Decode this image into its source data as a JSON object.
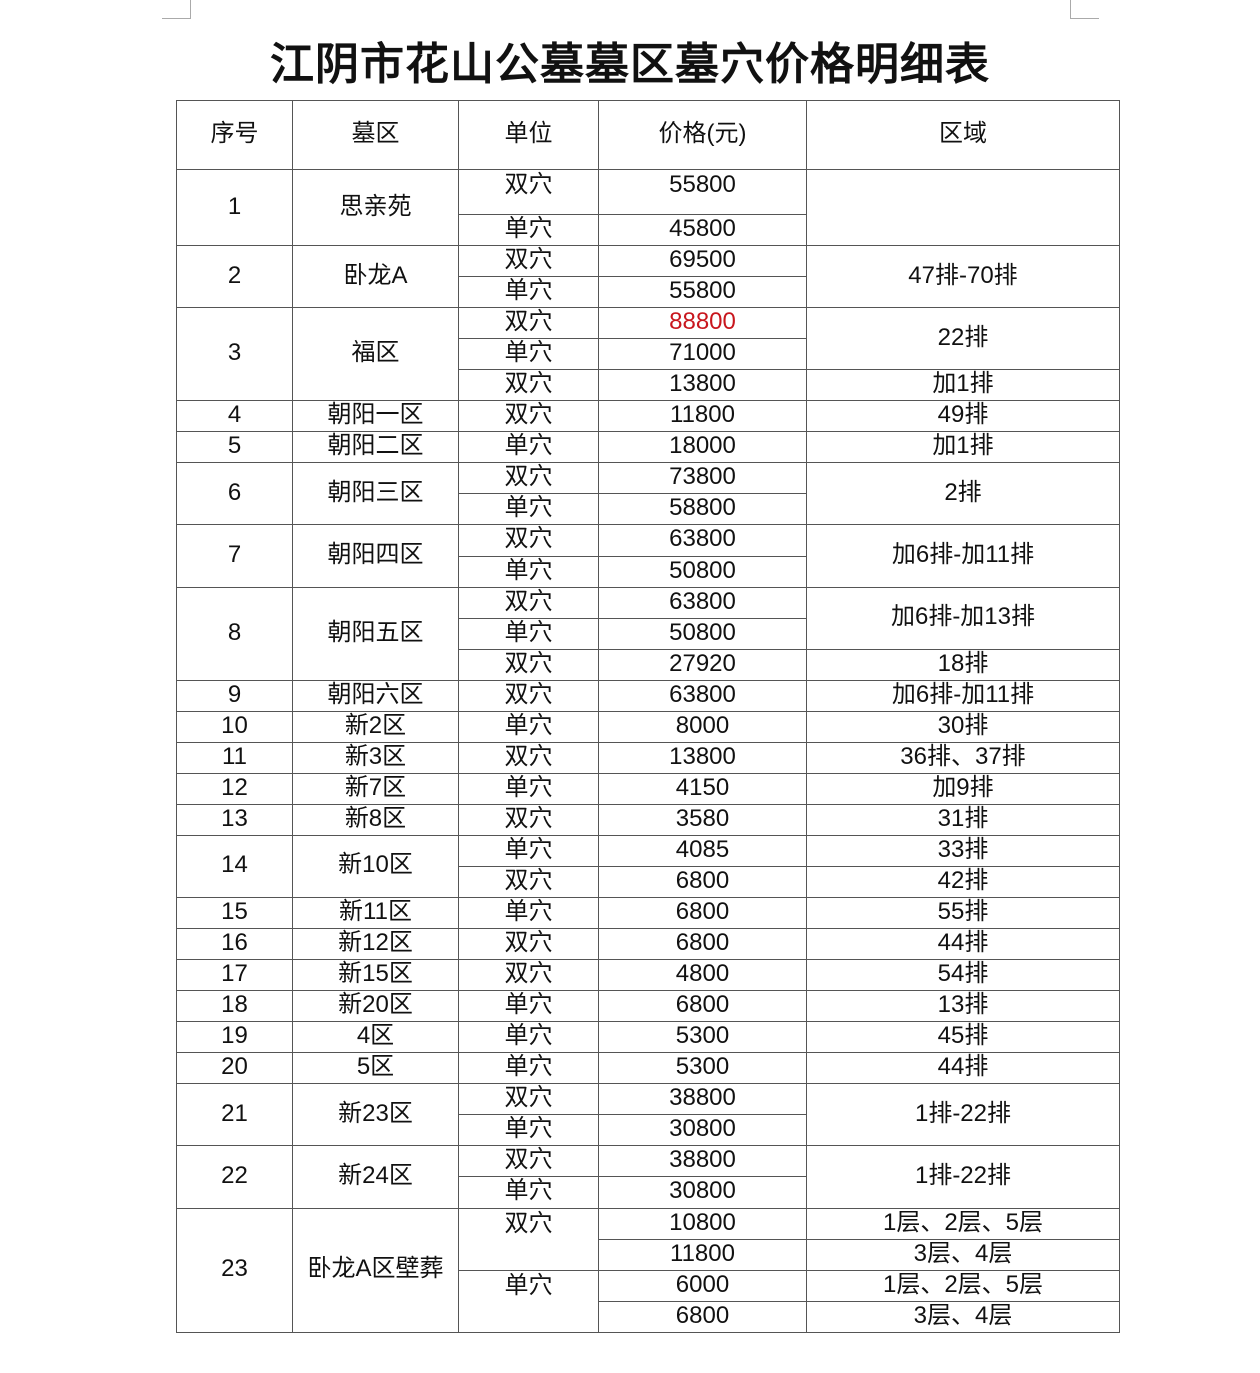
{
  "title": "江阴市花山公墓墓区墓穴价格明细表",
  "colors": {
    "highlight": "#c8161d"
  },
  "headers": [
    "序号",
    "墓区",
    "单位",
    "价格(元)",
    "区域"
  ],
  "rows": [
    {
      "no": "1",
      "zone": "思亲苑",
      "units": [
        {
          "label": "双穴",
          "span": 1
        },
        {
          "label": "单穴",
          "span": 1
        }
      ],
      "prices": [
        "55800",
        "45800"
      ],
      "regions": [
        {
          "label": "",
          "span": 2
        }
      ]
    },
    {
      "no": "2",
      "zone": "卧龙A",
      "units": [
        {
          "label": "双穴",
          "span": 1
        },
        {
          "label": "单穴",
          "span": 1
        }
      ],
      "prices": [
        "69500",
        "55800"
      ],
      "regions": [
        {
          "label": "47排-70排",
          "span": 2
        }
      ]
    },
    {
      "no": "3",
      "zone": "福区",
      "units": [
        {
          "label": "双穴",
          "span": 1
        },
        {
          "label": "单穴",
          "span": 1
        },
        {
          "label": "双穴",
          "span": 1
        }
      ],
      "prices": [
        "88800",
        "71000",
        "13800"
      ],
      "highlight_prices": [
        "88800"
      ],
      "regions": [
        {
          "label": "22排",
          "span": 2
        },
        {
          "label": "加1排",
          "span": 1
        }
      ]
    },
    {
      "no": "4",
      "zone": "朝阳一区",
      "units": [
        {
          "label": "双穴",
          "span": 1
        }
      ],
      "prices": [
        "11800"
      ],
      "regions": [
        {
          "label": "49排",
          "span": 1
        }
      ]
    },
    {
      "no": "5",
      "zone": "朝阳二区",
      "units": [
        {
          "label": "单穴",
          "span": 1
        }
      ],
      "prices": [
        "18000"
      ],
      "regions": [
        {
          "label": "加1排",
          "span": 1
        }
      ]
    },
    {
      "no": "6",
      "zone": "朝阳三区",
      "units": [
        {
          "label": "双穴",
          "span": 1
        },
        {
          "label": "单穴",
          "span": 1
        }
      ],
      "prices": [
        "73800",
        "58800"
      ],
      "regions": [
        {
          "label": "2排",
          "span": 2
        }
      ]
    },
    {
      "no": "7",
      "zone": "朝阳四区",
      "units": [
        {
          "label": "双穴",
          "span": 1
        },
        {
          "label": "单穴",
          "span": 1
        }
      ],
      "prices": [
        "63800",
        "50800"
      ],
      "regions": [
        {
          "label": "加6排-加11排",
          "span": 2
        }
      ]
    },
    {
      "no": "8",
      "zone": "朝阳五区",
      "units": [
        {
          "label": "双穴",
          "span": 1
        },
        {
          "label": "单穴",
          "span": 1
        },
        {
          "label": "双穴",
          "span": 1
        }
      ],
      "prices": [
        "63800",
        "50800",
        "27920"
      ],
      "regions": [
        {
          "label": "加6排-加13排",
          "span": 2
        },
        {
          "label": "18排",
          "span": 1
        }
      ]
    },
    {
      "no": "9",
      "zone": "朝阳六区",
      "units": [
        {
          "label": "双穴",
          "span": 1
        }
      ],
      "prices": [
        "63800"
      ],
      "regions": [
        {
          "label": "加6排-加11排",
          "span": 1
        }
      ]
    },
    {
      "no": "10",
      "zone": "新2区",
      "units": [
        {
          "label": "单穴",
          "span": 1
        }
      ],
      "prices": [
        "8000"
      ],
      "regions": [
        {
          "label": "30排",
          "span": 1
        }
      ]
    },
    {
      "no": "11",
      "zone": "新3区",
      "units": [
        {
          "label": "双穴",
          "span": 1
        }
      ],
      "prices": [
        "13800"
      ],
      "regions": [
        {
          "label": "36排、37排",
          "span": 1
        }
      ]
    },
    {
      "no": "12",
      "zone": "新7区",
      "units": [
        {
          "label": "单穴",
          "span": 1
        }
      ],
      "prices": [
        "4150"
      ],
      "regions": [
        {
          "label": "加9排",
          "span": 1
        }
      ]
    },
    {
      "no": "13",
      "zone": "新8区",
      "units": [
        {
          "label": "双穴",
          "span": 1
        }
      ],
      "prices": [
        "3580"
      ],
      "regions": [
        {
          "label": "31排",
          "span": 1
        }
      ]
    },
    {
      "no": "14",
      "zone": "新10区",
      "units": [
        {
          "label": "单穴",
          "span": 1
        },
        {
          "label": "双穴",
          "span": 1
        }
      ],
      "prices": [
        "4085",
        "6800"
      ],
      "regions": [
        {
          "label": "33排",
          "span": 1
        },
        {
          "label": "42排",
          "span": 1
        }
      ]
    },
    {
      "no": "15",
      "zone": "新11区",
      "units": [
        {
          "label": "单穴",
          "span": 1
        }
      ],
      "prices": [
        "6800"
      ],
      "regions": [
        {
          "label": "55排",
          "span": 1
        }
      ]
    },
    {
      "no": "16",
      "zone": "新12区",
      "units": [
        {
          "label": "双穴",
          "span": 1
        }
      ],
      "prices": [
        "6800"
      ],
      "regions": [
        {
          "label": "44排",
          "span": 1
        }
      ]
    },
    {
      "no": "17",
      "zone": "新15区",
      "units": [
        {
          "label": "双穴",
          "span": 1
        }
      ],
      "prices": [
        "4800"
      ],
      "regions": [
        {
          "label": "54排",
          "span": 1
        }
      ]
    },
    {
      "no": "18",
      "zone": "新20区",
      "units": [
        {
          "label": "单穴",
          "span": 1
        }
      ],
      "prices": [
        "6800"
      ],
      "regions": [
        {
          "label": "13排",
          "span": 1
        }
      ]
    },
    {
      "no": "19",
      "zone": "4区",
      "units": [
        {
          "label": "单穴",
          "span": 1
        }
      ],
      "prices": [
        "5300"
      ],
      "regions": [
        {
          "label": "45排",
          "span": 1
        }
      ]
    },
    {
      "no": "20",
      "zone": "5区",
      "units": [
        {
          "label": "单穴",
          "span": 1
        }
      ],
      "prices": [
        "5300"
      ],
      "regions": [
        {
          "label": "44排",
          "span": 1
        }
      ]
    },
    {
      "no": "21",
      "zone": "新23区",
      "units": [
        {
          "label": "双穴",
          "span": 1
        },
        {
          "label": "单穴",
          "span": 1
        }
      ],
      "prices": [
        "38800",
        "30800"
      ],
      "regions": [
        {
          "label": "1排-22排",
          "span": 2
        }
      ]
    },
    {
      "no": "22",
      "zone": "新24区",
      "units": [
        {
          "label": "双穴",
          "span": 1
        },
        {
          "label": "单穴",
          "span": 1
        }
      ],
      "prices": [
        "38800",
        "30800"
      ],
      "regions": [
        {
          "label": "1排-22排",
          "span": 2
        }
      ]
    },
    {
      "no": "23",
      "zone": "卧龙A区壁葬",
      "units": [
        {
          "label": "双穴",
          "span": 2
        },
        {
          "label": "单穴",
          "span": 2
        }
      ],
      "prices": [
        "10800",
        "11800",
        "6000",
        "6800"
      ],
      "regions": [
        {
          "label": "1层、2层、5层",
          "span": 1
        },
        {
          "label": "3层、4层",
          "span": 1
        },
        {
          "label": "1层、2层、5层",
          "span": 1
        },
        {
          "label": "3层、4层",
          "span": 1
        }
      ]
    }
  ]
}
